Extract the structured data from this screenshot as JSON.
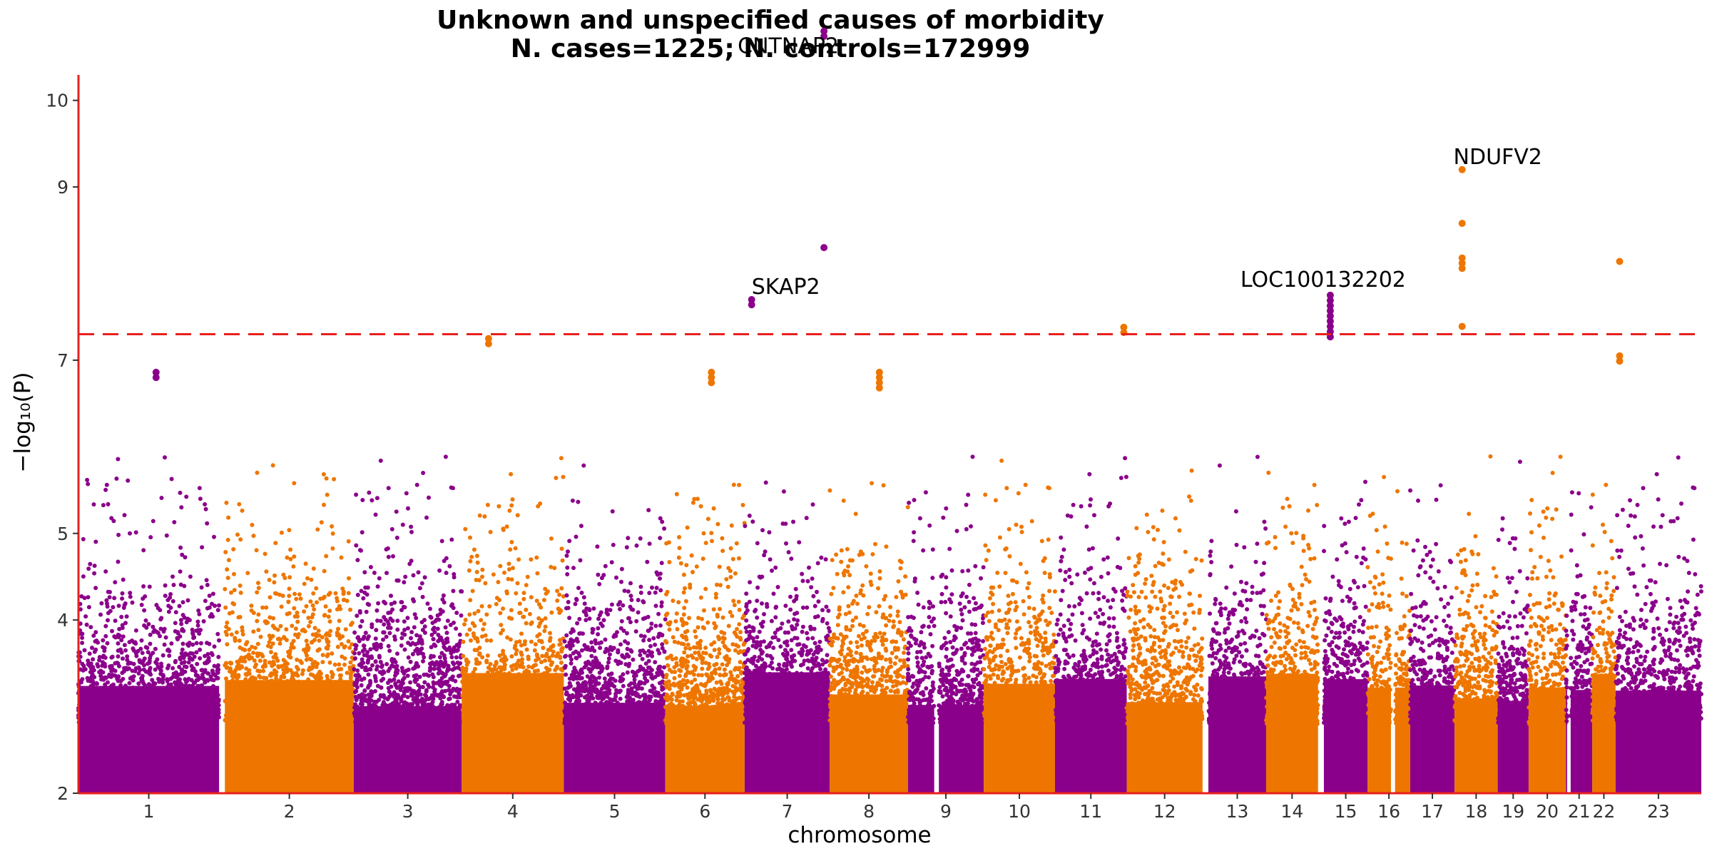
{
  "chart_data": {
    "type": "scatter",
    "title": "Unknown and unspecified causes of morbidity",
    "subtitle": "N. cases=1225; N. controls=172999",
    "xlabel": "chromosome",
    "ylabel": "−log₁₀(P)",
    "ylim": [
      2,
      10.5
    ],
    "yticks": [
      2,
      4,
      5,
      7,
      9,
      10
    ],
    "threshold": 7.3,
    "colors": {
      "odd": "#8B008B",
      "even": "#EE7600",
      "threshold": "#E8201E",
      "axis": "#E8201E"
    },
    "chromosomes": [
      {
        "label": "1",
        "start": 0.0,
        "end": 2.41,
        "gapAfter": true
      },
      {
        "label": "2",
        "start": 2.51,
        "end": 4.72
      },
      {
        "label": "3",
        "start": 4.72,
        "end": 6.57
      },
      {
        "label": "4",
        "start": 6.57,
        "end": 8.32
      },
      {
        "label": "5",
        "start": 8.32,
        "end": 10.06
      },
      {
        "label": "6",
        "start": 10.06,
        "end": 11.42
      },
      {
        "label": "7",
        "start": 11.42,
        "end": 12.88
      },
      {
        "label": "8",
        "start": 12.88,
        "end": 14.22
      },
      {
        "label": "9",
        "start": 14.22,
        "end": 15.52,
        "gapInside": [
          14.67,
          14.75
        ]
      },
      {
        "label": "10",
        "start": 15.52,
        "end": 16.74
      },
      {
        "label": "11",
        "start": 16.74,
        "end": 17.97
      },
      {
        "label": "12",
        "start": 17.97,
        "end": 19.27,
        "gapAfter": true
      },
      {
        "label": "13",
        "start": 19.37,
        "end": 20.36
      },
      {
        "label": "14",
        "start": 20.36,
        "end": 21.25,
        "gapAfter": true
      },
      {
        "label": "15",
        "start": 21.35,
        "end": 22.1
      },
      {
        "label": "16",
        "start": 22.1,
        "end": 22.83,
        "gapInside": [
          22.5,
          22.57
        ]
      },
      {
        "label": "17",
        "start": 22.83,
        "end": 23.59
      },
      {
        "label": "18",
        "start": 23.59,
        "end": 24.33
      },
      {
        "label": "19",
        "start": 24.33,
        "end": 24.86
      },
      {
        "label": "20",
        "start": 24.86,
        "end": 25.5
      },
      {
        "label": "21",
        "start": 25.5,
        "end": 25.95,
        "gapInside": [
          25.52,
          25.58
        ]
      },
      {
        "label": "22",
        "start": 25.95,
        "end": 26.35
      },
      {
        "label": "23",
        "start": 26.35,
        "end": 27.82
      }
    ],
    "peaks": [
      {
        "chr": "1",
        "x": 1.33,
        "y": 6.86,
        "n": 2
      },
      {
        "chr": "4",
        "x": 7.03,
        "y": 7.25,
        "n": 2
      },
      {
        "chr": "6",
        "x": 10.85,
        "y": 6.86,
        "n": 3
      },
      {
        "chr": "7",
        "x": 11.54,
        "y": 7.7,
        "gene": "SKAP2",
        "n": 2
      },
      {
        "chr": "7",
        "x": 12.78,
        "y": 10.8,
        "gene": "CNTNAP2",
        "n": 2
      },
      {
        "chr": "7",
        "x": 12.78,
        "y": 8.3,
        "n": 1
      },
      {
        "chr": "8",
        "x": 13.73,
        "y": 6.86,
        "n": 4
      },
      {
        "chr": "12",
        "x": 17.92,
        "y": 7.38,
        "n": 2
      },
      {
        "chr": "15",
        "x": 21.46,
        "y": 7.75,
        "gene": "LOC100132202",
        "n": 9
      },
      {
        "chr": "18",
        "x": 23.72,
        "y": 9.2,
        "gene": "NDUFV2",
        "n": 1
      },
      {
        "chr": "18",
        "x": 23.72,
        "y": 8.58,
        "n": 1
      },
      {
        "chr": "18",
        "x": 23.72,
        "y": 8.18,
        "n": 3
      },
      {
        "chr": "18",
        "x": 23.72,
        "y": 7.39,
        "n": 1
      },
      {
        "chr": "22",
        "x": 26.42,
        "y": 8.14,
        "n": 1
      },
      {
        "chr": "22",
        "x": 26.42,
        "y": 7.05,
        "n": 2
      }
    ]
  }
}
